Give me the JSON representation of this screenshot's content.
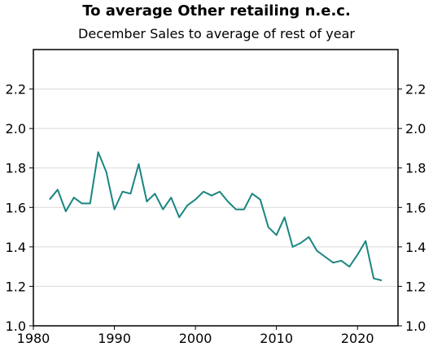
{
  "chart_data": {
    "type": "line",
    "title": "To average Other retailing n.e.c.",
    "subtitle": "December Sales to average of rest of year",
    "xlabel": "",
    "ylabel": "",
    "xlim": [
      1980,
      2025
    ],
    "ylim": [
      1.0,
      2.4
    ],
    "x_ticks": [
      1980,
      1990,
      2000,
      2010,
      2020
    ],
    "y_ticks": [
      1.0,
      1.2,
      1.4,
      1.6,
      1.8,
      2.0,
      2.2
    ],
    "x_tick_labels": [
      "1980",
      "1990",
      "2000",
      "2010",
      "2020"
    ],
    "y_tick_labels": [
      "1.0",
      "1.2",
      "1.4",
      "1.6",
      "1.8",
      "2.0",
      "2.2"
    ],
    "grid": true,
    "line_color": "#1a8580",
    "series": [
      {
        "x": [
          1982,
          1983,
          1984,
          1985,
          1986,
          1987,
          1988,
          1989,
          1990,
          1991,
          1992,
          1993,
          1994,
          1995,
          1996,
          1997,
          1998,
          1999,
          2000,
          2001,
          2002,
          2003,
          2004,
          2005,
          2006,
          2007,
          2008,
          2009,
          2010,
          2011,
          2012,
          2013,
          2014,
          2015,
          2016,
          2017,
          2018,
          2019,
          2020,
          2021,
          2022,
          2023
        ],
        "values": [
          1.64,
          1.69,
          1.58,
          1.65,
          1.62,
          1.62,
          1.88,
          1.78,
          1.59,
          1.68,
          1.67,
          1.82,
          1.63,
          1.67,
          1.59,
          1.65,
          1.55,
          1.61,
          1.64,
          1.68,
          1.66,
          1.68,
          1.63,
          1.59,
          1.59,
          1.67,
          1.64,
          1.5,
          1.46,
          1.55,
          1.4,
          1.42,
          1.45,
          1.38,
          1.35,
          1.32,
          1.33,
          1.3,
          1.36,
          1.43,
          1.24,
          1.23
        ]
      }
    ]
  }
}
